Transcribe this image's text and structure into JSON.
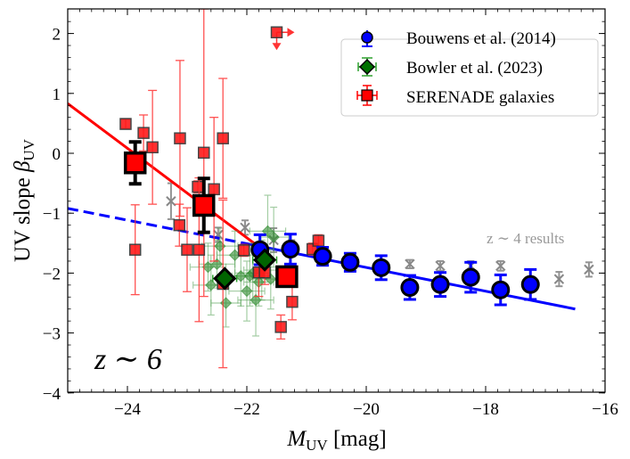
{
  "chart_data": {
    "type": "scatter",
    "title": "",
    "xlabel": "M_UV [mag]",
    "xlabel_main": "M",
    "xlabel_sub": "UV",
    "xlabel_unit": " [mag]",
    "ylabel": "UV slope β_UV",
    "ylabel_main": "UV slope ",
    "ylabel_beta": "β",
    "ylabel_sub": "UV",
    "xlim": [
      -25,
      -16
    ],
    "ylim": [
      -4,
      2.4
    ],
    "xticks": [
      -24,
      -22,
      -20,
      -18,
      -16
    ],
    "xtick_labels": [
      "−24",
      "−22",
      "−20",
      "−18",
      "−16"
    ],
    "yticks": [
      -4,
      -3,
      -2,
      -1,
      0,
      1,
      2
    ],
    "ytick_labels": [
      "−4",
      "−3",
      "−2",
      "−1",
      "0",
      "1",
      "2"
    ],
    "grid": false,
    "legend_position": "top-right",
    "legend": [
      {
        "label": "Bouwens et al. (2014)",
        "marker": "circle",
        "color": "#0000ff"
      },
      {
        "label": "Bowler et al. (2023)",
        "marker": "diamond",
        "color": "#008000"
      },
      {
        "label": "SERENADE galaxies",
        "marker": "square",
        "color": "#ff0000"
      }
    ],
    "annotations": [
      {
        "text": "z ∼ 6",
        "position": "bottom-left"
      },
      {
        "text": "z ∼ 4 results",
        "position": "right",
        "color": "#999999"
      }
    ],
    "series": [
      {
        "name": "Bouwens et al. (2014)",
        "color": "#0000ff",
        "marker": "circle",
        "points": [
          {
            "x": -21.78,
            "y": -1.61,
            "yerr": 0.25
          },
          {
            "x": -21.27,
            "y": -1.6,
            "yerr": 0.25
          },
          {
            "x": -20.73,
            "y": -1.72,
            "yerr": 0.15
          },
          {
            "x": -20.27,
            "y": -1.82,
            "yerr": 0.15
          },
          {
            "x": -19.75,
            "y": -1.91,
            "yerr": 0.2
          },
          {
            "x": -19.27,
            "y": -2.24,
            "yerr": 0.2
          },
          {
            "x": -18.76,
            "y": -2.19,
            "yerr": 0.2
          },
          {
            "x": -18.25,
            "y": -2.07,
            "yerr": 0.25
          },
          {
            "x": -17.75,
            "y": -2.28,
            "yerr": 0.25
          },
          {
            "x": -17.25,
            "y": -2.19,
            "yerr": 0.25
          }
        ]
      },
      {
        "name": "Bowler et al. (2023)",
        "color": "#008000",
        "marker": "diamond",
        "points": [
          {
            "x": -22.37,
            "y": -2.09,
            "xerr": 0.2,
            "yerr": 0.1
          },
          {
            "x": -21.7,
            "y": -1.78,
            "xerr": 0.2,
            "yerr": 0.1
          }
        ]
      },
      {
        "name": "Bowler individual",
        "color": "#5aa55a",
        "marker": "small-diamond",
        "points": [
          {
            "x": -22.5,
            "y": -1.85,
            "xerr": 0.3,
            "yerr": 0.4
          },
          {
            "x": -22.2,
            "y": -1.7,
            "xerr": 0.3,
            "yerr": 0.4
          },
          {
            "x": -22.0,
            "y": -2.3,
            "xerr": 0.3,
            "yerr": 0.5
          },
          {
            "x": -22.6,
            "y": -2.2,
            "xerr": 0.3,
            "yerr": 0.5
          },
          {
            "x": -22.35,
            "y": -2.5,
            "xerr": 0.25,
            "yerr": 0.4
          },
          {
            "x": -21.85,
            "y": -2.45,
            "xerr": 0.3,
            "yerr": 0.6
          },
          {
            "x": -21.9,
            "y": -2.0,
            "xerr": 0.3,
            "yerr": 0.5
          },
          {
            "x": -21.65,
            "y": -1.3,
            "xerr": 0.3,
            "yerr": 0.6
          },
          {
            "x": -21.55,
            "y": -1.4,
            "xerr": 0.25,
            "yerr": 0.5
          },
          {
            "x": -21.75,
            "y": -1.95,
            "xerr": 0.3,
            "yerr": 0.5
          },
          {
            "x": -21.6,
            "y": -2.1,
            "xerr": 0.3,
            "yerr": 0.5
          },
          {
            "x": -22.1,
            "y": -2.05,
            "xerr": 0.3,
            "yerr": 0.5
          },
          {
            "x": -21.95,
            "y": -2.05,
            "xerr": 0.3,
            "yerr": 0.5
          },
          {
            "x": -22.65,
            "y": -1.9,
            "xerr": 0.3,
            "yerr": 0.4
          },
          {
            "x": -21.8,
            "y": -2.15,
            "xerr": 0.25,
            "yerr": 0.4
          },
          {
            "x": -22.45,
            "y": -1.55,
            "xerr": 0.3,
            "yerr": 0.3
          }
        ]
      },
      {
        "name": "SERENADE galaxies",
        "color": "#ff0000",
        "marker": "square",
        "points": [
          {
            "x": -24.03,
            "y": 0.49,
            "yerr": 0.08
          },
          {
            "x": -23.73,
            "y": 0.34,
            "yerr": 0.3
          },
          {
            "x": -23.58,
            "y": 0.1,
            "yerr": 0.95
          },
          {
            "x": -23.12,
            "y": 0.25,
            "yerr": 1.3
          },
          {
            "x": -22.72,
            "y": 0.01,
            "yerr": 2.4
          },
          {
            "x": -22.82,
            "y": -0.56,
            "yerr": 0.1
          },
          {
            "x": -22.55,
            "y": -0.6,
            "yerr": 1.2
          },
          {
            "x": -22.4,
            "y": 0.25,
            "yerr": 1.0
          },
          {
            "x": -23.13,
            "y": -1.2,
            "yerr": 0.35
          },
          {
            "x": -23.87,
            "y": -1.61,
            "yerr": 0.75
          },
          {
            "x": -23.0,
            "y": -1.61,
            "yerr": 0.7
          },
          {
            "x": -22.8,
            "y": -1.61,
            "yerr": 1.2
          },
          {
            "x": -22.4,
            "y": -2.18,
            "yerr": 1.4
          },
          {
            "x": -22.05,
            "y": -1.62,
            "yerr": 0.1
          },
          {
            "x": -21.8,
            "y": -1.99,
            "yerr": 0.4
          },
          {
            "x": -21.7,
            "y": -1.99,
            "yerr": 0.2
          },
          {
            "x": -21.24,
            "y": -2.48,
            "yerr": 0.3
          },
          {
            "x": -21.43,
            "y": -2.9,
            "yerr": 0.2
          },
          {
            "x": -20.9,
            "y": -1.6,
            "yerr": 0.1
          },
          {
            "x": -20.8,
            "y": -1.46,
            "yerr": 0.1
          },
          {
            "x": -21.5,
            "y": 2.02,
            "limit": "upper-and-fainter"
          }
        ]
      },
      {
        "name": "SERENADE binned",
        "color": "#ff0000",
        "marker": "big-square",
        "points": [
          {
            "x": -23.87,
            "y": -0.16,
            "yerr": 0.35
          },
          {
            "x": -22.72,
            "y": -0.87,
            "yerr": 0.45
          },
          {
            "x": -21.33,
            "y": -2.06,
            "yerr": 0.1
          }
        ]
      },
      {
        "name": "z ~ 4 results",
        "color": "#888888",
        "marker": "x",
        "points": [
          {
            "x": -23.27,
            "y": -0.8,
            "yerr": 0.3
          },
          {
            "x": -22.48,
            "y": -1.36,
            "yerr": 0.12
          },
          {
            "x": -22.03,
            "y": -1.24,
            "yerr": 0.12
          },
          {
            "x": -21.55,
            "y": -1.45,
            "yerr": 0.2
          },
          {
            "x": -21.25,
            "y": -1.55,
            "yerr": 0.1
          },
          {
            "x": -19.27,
            "y": -1.85,
            "yerr": 0.07
          },
          {
            "x": -18.76,
            "y": -1.88,
            "yerr": 0.08
          },
          {
            "x": -18.25,
            "y": -1.88,
            "yerr": 0.08
          },
          {
            "x": -17.75,
            "y": -1.88,
            "yerr": 0.08
          },
          {
            "x": -16.77,
            "y": -2.1,
            "yerr": 0.12
          },
          {
            "x": -16.27,
            "y": -1.94,
            "yerr": 0.12
          }
        ]
      }
    ],
    "fit_lines": [
      {
        "name": "SERENADE fit",
        "color": "#ff0000",
        "style": "solid",
        "x": [
          -25,
          -21.8
        ],
        "y": [
          0.83,
          -1.56
        ]
      },
      {
        "name": "Bouwens fit (extrapolated)",
        "color": "#0000ff",
        "style": "dashed",
        "x": [
          -25,
          -21.95
        ],
        "y": [
          -0.92,
          -1.52
        ]
      },
      {
        "name": "Bouwens fit",
        "color": "#0000ff",
        "style": "solid",
        "x": [
          -21.95,
          -16.5
        ],
        "y": [
          -1.52,
          -2.6
        ]
      }
    ]
  }
}
